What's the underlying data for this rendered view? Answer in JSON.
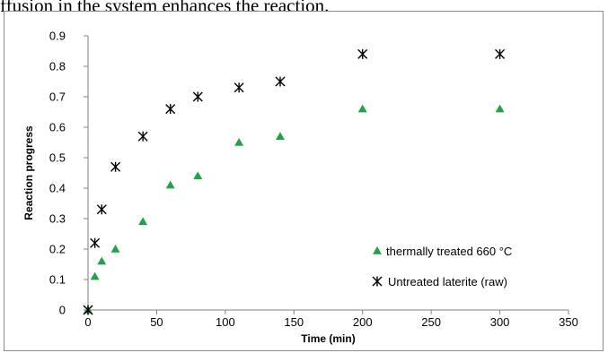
{
  "caption": "ffusion in the system enhances the reaction.",
  "chart_data": {
    "type": "scatter",
    "title": "",
    "xlabel": "Time (min)",
    "ylabel": "Reaction progress",
    "xlim": [
      0,
      350
    ],
    "ylim": [
      0,
      0.9
    ],
    "xticks": [
      0,
      50,
      100,
      150,
      200,
      250,
      300,
      350
    ],
    "yticks": [
      0,
      0.1,
      0.2,
      0.3,
      0.4,
      0.5,
      0.6,
      0.7,
      0.8,
      0.9
    ],
    "xtick_labels": [
      "0",
      "50",
      "100",
      "150",
      "200",
      "250",
      "300",
      "350"
    ],
    "ytick_labels": [
      "0",
      "0.1",
      "0.2",
      "0.3",
      "0.4",
      "0.5",
      "0.6",
      "0.7",
      "0.8",
      "0.9"
    ],
    "grid": false,
    "legend_position": "right",
    "series": [
      {
        "name": "thermally treated 660 °C",
        "marker": "triangle",
        "color": "#1fa34a",
        "points": [
          [
            0,
            0
          ],
          [
            5,
            0.11
          ],
          [
            10,
            0.16
          ],
          [
            20,
            0.2
          ],
          [
            40,
            0.29
          ],
          [
            60,
            0.41
          ],
          [
            80,
            0.44
          ],
          [
            110,
            0.55
          ],
          [
            140,
            0.57
          ],
          [
            200,
            0.66
          ],
          [
            300,
            0.66
          ]
        ]
      },
      {
        "name": "Untreated laterite (raw)",
        "marker": "asterisk",
        "color": "#000000",
        "points": [
          [
            0,
            0
          ],
          [
            5,
            0.22
          ],
          [
            10,
            0.33
          ],
          [
            20,
            0.47
          ],
          [
            40,
            0.57
          ],
          [
            60,
            0.66
          ],
          [
            80,
            0.7
          ],
          [
            110,
            0.73
          ],
          [
            140,
            0.75
          ],
          [
            200,
            0.84
          ],
          [
            300,
            0.84
          ]
        ]
      }
    ]
  }
}
